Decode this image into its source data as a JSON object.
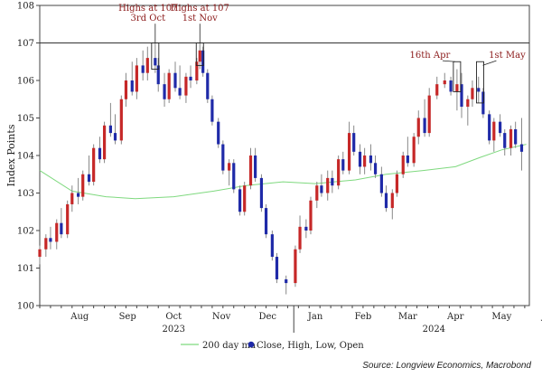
{
  "chart_data": {
    "type": "candlestick",
    "ylabel": "Index Points",
    "ylim": [
      100,
      108
    ],
    "yticks": [
      "100",
      "101",
      "102",
      "103",
      "104",
      "105",
      "106",
      "107",
      "108"
    ],
    "xlim": [
      "2023-07-20",
      "2024-06-02"
    ],
    "xticks": [
      {
        "label": "Aug",
        "date": "2023-08-15"
      },
      {
        "label": "Sep",
        "date": "2023-09-15"
      },
      {
        "label": "Oct",
        "date": "2023-10-15"
      },
      {
        "label": "Nov",
        "date": "2023-11-15"
      },
      {
        "label": "Dec",
        "date": "2023-12-15"
      },
      {
        "label": "Jan",
        "date": "2024-01-15"
      },
      {
        "label": "Feb",
        "date": "2024-02-15"
      },
      {
        "label": "Mar",
        "date": "2024-03-15"
      },
      {
        "label": "Apr",
        "date": "2024-04-15"
      },
      {
        "label": "May",
        "date": "2024-05-15"
      },
      {
        "label": "Jun",
        "date": "2024-06-15"
      }
    ],
    "year_labels": [
      {
        "label": "2023",
        "date": "2023-10-15"
      },
      {
        "label": "2024",
        "date": "2024-04-01"
      }
    ],
    "year_separator": "2024-01-01",
    "reference_line": 107,
    "up_color": "#c62828",
    "down_color": "#1f2aa8",
    "ma_color": "#7fd97f",
    "candles": [
      [
        "2023-07-20",
        101.3,
        101.6,
        101.1,
        101.5
      ],
      [
        "2023-07-24",
        101.5,
        101.9,
        101.3,
        101.8
      ],
      [
        "2023-07-27",
        101.8,
        102.1,
        101.5,
        101.7
      ],
      [
        "2023-07-31",
        101.7,
        102.3,
        101.5,
        102.2
      ],
      [
        "2023-08-03",
        102.2,
        102.6,
        101.8,
        101.9
      ],
      [
        "2023-08-07",
        101.9,
        102.8,
        101.8,
        102.7
      ],
      [
        "2023-08-10",
        102.7,
        103.2,
        102.5,
        103.0
      ],
      [
        "2023-08-14",
        103.0,
        103.4,
        102.7,
        102.9
      ],
      [
        "2023-08-17",
        102.9,
        103.6,
        102.8,
        103.5
      ],
      [
        "2023-08-21",
        103.5,
        104.0,
        103.2,
        103.3
      ],
      [
        "2023-08-24",
        103.3,
        104.3,
        103.2,
        104.2
      ],
      [
        "2023-08-28",
        104.2,
        104.5,
        103.8,
        103.9
      ],
      [
        "2023-08-31",
        103.9,
        104.9,
        103.8,
        104.8
      ],
      [
        "2023-09-04",
        104.8,
        105.4,
        104.5,
        104.6
      ],
      [
        "2023-09-07",
        104.6,
        105.1,
        104.3,
        104.4
      ],
      [
        "2023-09-11",
        104.4,
        105.6,
        104.3,
        105.5
      ],
      [
        "2023-09-14",
        105.5,
        106.2,
        105.3,
        106.0
      ],
      [
        "2023-09-18",
        106.0,
        106.5,
        105.6,
        105.7
      ],
      [
        "2023-09-21",
        105.7,
        106.6,
        105.5,
        106.4
      ],
      [
        "2023-09-25",
        106.4,
        106.8,
        106.0,
        106.2
      ],
      [
        "2023-09-28",
        106.2,
        106.9,
        106.0,
        106.6
      ],
      [
        "2023-10-03",
        106.6,
        107.0,
        106.2,
        106.4
      ],
      [
        "2023-10-05",
        106.4,
        106.6,
        105.7,
        105.9
      ],
      [
        "2023-10-09",
        105.9,
        106.2,
        105.3,
        105.5
      ],
      [
        "2023-10-12",
        105.5,
        106.3,
        105.4,
        106.2
      ],
      [
        "2023-10-16",
        106.2,
        106.5,
        105.7,
        105.8
      ],
      [
        "2023-10-19",
        105.8,
        106.4,
        105.5,
        105.6
      ],
      [
        "2023-10-23",
        105.6,
        106.2,
        105.4,
        106.1
      ],
      [
        "2023-10-26",
        106.1,
        106.4,
        105.8,
        106.0
      ],
      [
        "2023-10-30",
        106.0,
        106.6,
        105.9,
        106.5
      ],
      [
        "2023-11-01",
        106.5,
        107.0,
        106.3,
        106.8
      ],
      [
        "2023-11-03",
        106.8,
        106.9,
        106.1,
        106.2
      ],
      [
        "2023-11-06",
        106.2,
        106.3,
        105.4,
        105.5
      ],
      [
        "2023-11-09",
        105.5,
        105.6,
        104.8,
        104.9
      ],
      [
        "2023-11-13",
        104.9,
        105.0,
        104.2,
        104.3
      ],
      [
        "2023-11-16",
        104.3,
        104.4,
        103.5,
        103.6
      ],
      [
        "2023-11-20",
        103.6,
        103.9,
        103.2,
        103.8
      ],
      [
        "2023-11-23",
        103.8,
        103.9,
        103.0,
        103.1
      ],
      [
        "2023-11-27",
        103.1,
        103.2,
        102.4,
        102.5
      ],
      [
        "2023-11-30",
        102.5,
        103.3,
        102.4,
        103.2
      ],
      [
        "2023-12-04",
        103.2,
        104.2,
        103.1,
        104.0
      ],
      [
        "2023-12-07",
        104.0,
        104.2,
        103.3,
        103.4
      ],
      [
        "2023-12-11",
        103.4,
        103.5,
        102.5,
        102.6
      ],
      [
        "2023-12-14",
        102.6,
        102.7,
        101.8,
        101.9
      ],
      [
        "2023-12-18",
        101.9,
        102.0,
        101.2,
        101.3
      ],
      [
        "2023-12-21",
        101.3,
        101.4,
        100.6,
        100.7
      ],
      [
        "2023-12-27",
        100.7,
        100.8,
        100.3,
        100.6
      ],
      [
        "2024-01-02",
        100.6,
        101.6,
        100.5,
        101.5
      ],
      [
        "2024-01-05",
        101.5,
        102.4,
        101.4,
        102.1
      ],
      [
        "2024-01-09",
        102.1,
        102.3,
        101.8,
        102.0
      ],
      [
        "2024-01-12",
        102.0,
        102.9,
        101.9,
        102.8
      ],
      [
        "2024-01-16",
        102.8,
        103.3,
        102.6,
        103.2
      ],
      [
        "2024-01-19",
        103.2,
        103.5,
        102.9,
        103.0
      ],
      [
        "2024-01-23",
        103.0,
        103.6,
        102.8,
        103.4
      ],
      [
        "2024-01-26",
        103.4,
        103.6,
        103.0,
        103.2
      ],
      [
        "2024-01-30",
        103.2,
        104.0,
        103.1,
        103.9
      ],
      [
        "2024-02-02",
        103.9,
        104.1,
        103.5,
        103.6
      ],
      [
        "2024-02-06",
        103.6,
        104.9,
        103.5,
        104.6
      ],
      [
        "2024-02-09",
        104.6,
        104.8,
        104.0,
        104.1
      ],
      [
        "2024-02-13",
        104.1,
        104.3,
        103.5,
        103.7
      ],
      [
        "2024-02-16",
        103.7,
        104.2,
        103.5,
        104.0
      ],
      [
        "2024-02-20",
        104.0,
        104.3,
        103.6,
        103.8
      ],
      [
        "2024-02-23",
        103.8,
        104.0,
        103.4,
        103.5
      ],
      [
        "2024-02-27",
        103.5,
        103.7,
        102.9,
        103.0
      ],
      [
        "2024-03-01",
        103.0,
        103.2,
        102.5,
        102.6
      ],
      [
        "2024-03-05",
        102.6,
        103.1,
        102.3,
        103.0
      ],
      [
        "2024-03-08",
        103.0,
        103.6,
        102.9,
        103.5
      ],
      [
        "2024-03-12",
        103.5,
        104.1,
        103.4,
        104.0
      ],
      [
        "2024-03-15",
        104.0,
        104.5,
        103.7,
        103.8
      ],
      [
        "2024-03-19",
        103.8,
        104.6,
        103.7,
        104.5
      ],
      [
        "2024-03-22",
        104.5,
        105.2,
        104.3,
        105.0
      ],
      [
        "2024-03-26",
        105.0,
        105.5,
        104.5,
        104.6
      ],
      [
        "2024-03-29",
        104.6,
        105.8,
        104.5,
        105.6
      ],
      [
        "2024-04-03",
        105.6,
        106.1,
        105.5,
        105.9
      ],
      [
        "2024-04-08",
        105.9,
        106.2,
        105.8,
        106.0
      ],
      [
        "2024-04-12",
        106.0,
        106.1,
        105.6,
        105.7
      ],
      [
        "2024-04-16",
        105.7,
        106.3,
        105.2,
        105.9
      ],
      [
        "2024-04-19",
        105.9,
        106.2,
        105.0,
        105.3
      ],
      [
        "2024-04-23",
        105.3,
        105.6,
        104.8,
        105.5
      ],
      [
        "2024-04-26",
        105.5,
        106.0,
        105.3,
        105.8
      ],
      [
        "2024-04-30",
        105.8,
        106.1,
        105.4,
        105.7
      ],
      [
        "2024-05-03",
        105.7,
        105.8,
        105.0,
        105.1
      ],
      [
        "2024-05-07",
        105.1,
        105.2,
        104.3,
        104.4
      ],
      [
        "2024-05-10",
        104.4,
        105.0,
        104.1,
        104.9
      ],
      [
        "2024-05-14",
        104.9,
        105.1,
        104.5,
        104.6
      ],
      [
        "2024-05-17",
        104.6,
        104.7,
        104.0,
        104.2
      ],
      [
        "2024-05-21",
        104.2,
        104.8,
        104.0,
        104.7
      ],
      [
        "2024-05-24",
        104.7,
        104.9,
        104.2,
        104.3
      ],
      [
        "2024-05-28",
        104.3,
        105.0,
        103.6,
        104.1
      ]
    ],
    "ma_200": [
      [
        "2023-07-20",
        103.6
      ],
      [
        "2023-08-10",
        103.05
      ],
      [
        "2023-09-01",
        102.9
      ],
      [
        "2023-09-20",
        102.85
      ],
      [
        "2023-10-15",
        102.9
      ],
      [
        "2023-11-10",
        103.05
      ],
      [
        "2023-12-01",
        103.2
      ],
      [
        "2023-12-25",
        103.3
      ],
      [
        "2024-01-15",
        103.25
      ],
      [
        "2024-02-10",
        103.35
      ],
      [
        "2024-03-01",
        103.5
      ],
      [
        "2024-03-25",
        103.6
      ],
      [
        "2024-04-15",
        103.7
      ],
      [
        "2024-05-01",
        103.95
      ],
      [
        "2024-05-15",
        104.15
      ],
      [
        "2024-05-31",
        104.3
      ]
    ],
    "annotations": [
      {
        "lines": [
          "Highs at 107",
          "3rd Oct"
        ],
        "date": "2023-10-03",
        "box_low": 106.3,
        "box_high": 107.0
      },
      {
        "lines": [
          "Highs at 107",
          "1st Nov"
        ],
        "date": "2023-11-01",
        "box_low": 106.4,
        "box_high": 107.0
      },
      {
        "lines": [
          "16th Apr"
        ],
        "date": "2024-04-16",
        "box_low": 105.7,
        "box_high": 106.5
      },
      {
        "lines": [
          "1st May"
        ],
        "date": "2024-05-01",
        "box_low": 105.4,
        "box_high": 106.5
      }
    ],
    "legend": {
      "ma_label": "200 day ma",
      "ohlc_label": "Close, High, Low, Open"
    },
    "source": "Source: Longview Economics, Macrobond"
  }
}
